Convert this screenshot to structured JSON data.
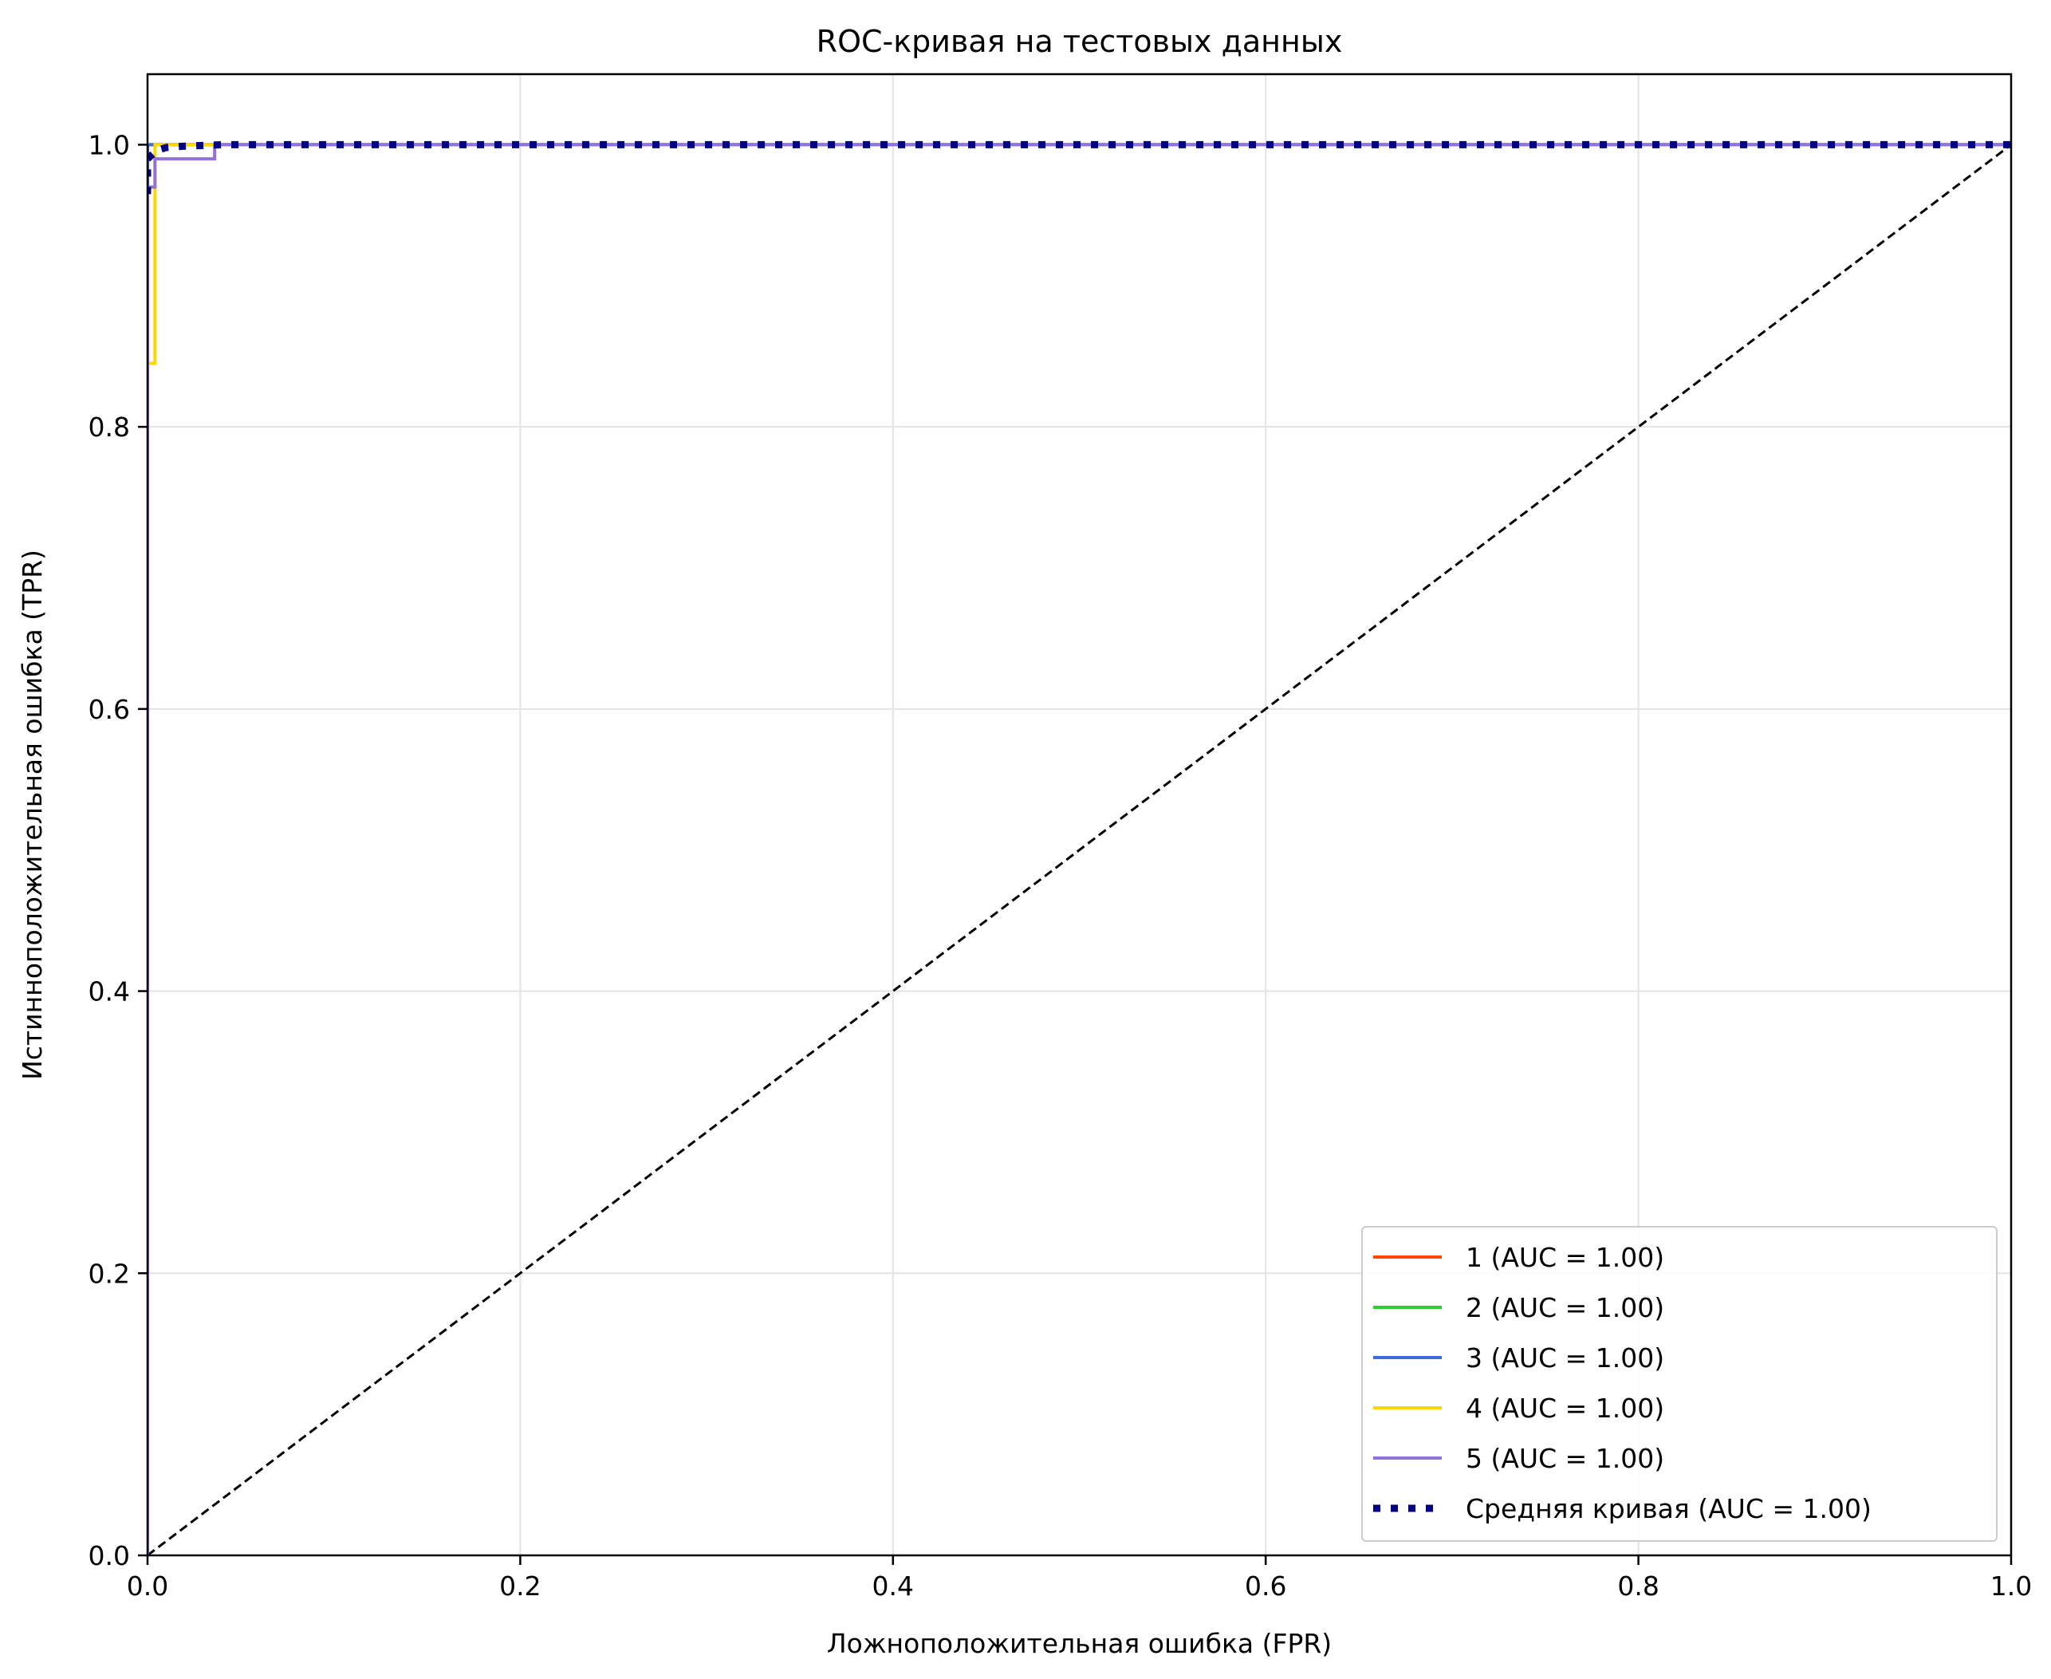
{
  "chart_data": {
    "type": "line",
    "title": "ROC-кривая на тестовых данных",
    "xlabel": "Ложноположительная ошибка (FPR)",
    "ylabel": "Истинноположительная ошибка (TPR)",
    "xlim": [
      0.0,
      1.0
    ],
    "ylim": [
      0.0,
      1.05
    ],
    "x_ticks": [
      "0.0",
      "0.2",
      "0.4",
      "0.6",
      "0.8",
      "1.0"
    ],
    "y_ticks": [
      "0.0",
      "0.2",
      "0.4",
      "0.6",
      "0.8",
      "1.0"
    ],
    "grid": true,
    "legend_position": "lower-right",
    "series": [
      {
        "name": "1 (AUC = 1.00)",
        "color": "#ff4500",
        "style": "solid",
        "x": [
          0.0,
          0.0,
          1.0
        ],
        "y": [
          0.0,
          1.0,
          1.0
        ]
      },
      {
        "name": "2 (AUC = 1.00)",
        "color": "#32cd32",
        "style": "solid",
        "x": [
          0.0,
          0.0,
          1.0
        ],
        "y": [
          0.0,
          1.0,
          1.0
        ]
      },
      {
        "name": "3 (AUC = 1.00)",
        "color": "#4169e1",
        "style": "solid",
        "x": [
          0.0,
          0.0,
          1.0
        ],
        "y": [
          0.0,
          1.0,
          1.0
        ]
      },
      {
        "name": "4 (AUC = 1.00)",
        "color": "#ffd700",
        "style": "solid",
        "x": [
          0.0,
          0.004,
          0.004,
          0.004,
          1.0
        ],
        "y": [
          0.845,
          0.845,
          0.97,
          1.0,
          1.0
        ]
      },
      {
        "name": "5 (AUC = 1.00)",
        "color": "#9370db",
        "style": "solid",
        "x": [
          0.0,
          0.0,
          0.004,
          0.004,
          0.036,
          0.036,
          1.0
        ],
        "y": [
          0.0,
          0.97,
          0.97,
          0.99,
          0.99,
          1.0,
          1.0
        ]
      },
      {
        "name": "Средняя кривая (AUC = 1.00)",
        "color": "#000080",
        "style": "dotted",
        "x": [
          0.0,
          0.0,
          0.005,
          0.01,
          0.02,
          0.04,
          1.0
        ],
        "y": [
          0.965,
          0.99,
          0.996,
          0.998,
          0.999,
          1.0,
          1.0
        ]
      }
    ],
    "diagonal": {
      "color": "#000000",
      "style": "dashed",
      "x": [
        0.0,
        1.0
      ],
      "y": [
        0.0,
        1.0
      ]
    }
  }
}
